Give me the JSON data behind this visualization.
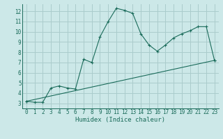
{
  "xlabel": "Humidex (Indice chaleur)",
  "bg_color": "#cce8e8",
  "grid_color": "#aacccc",
  "line_color": "#1a6b5a",
  "xlim": [
    -0.5,
    23.5
  ],
  "ylim": [
    2.5,
    12.7
  ],
  "xticks": [
    0,
    1,
    2,
    3,
    4,
    5,
    6,
    7,
    8,
    9,
    10,
    11,
    12,
    13,
    14,
    15,
    16,
    17,
    18,
    19,
    20,
    21,
    22,
    23
  ],
  "yticks": [
    3,
    4,
    5,
    6,
    7,
    8,
    9,
    10,
    11,
    12
  ],
  "curve1_x": [
    0,
    1,
    2,
    3,
    4,
    5,
    6,
    7,
    8,
    9,
    10,
    11,
    12,
    13,
    14,
    15,
    16,
    17,
    18,
    19,
    20,
    21,
    22,
    23
  ],
  "curve1_y": [
    3.2,
    3.1,
    3.1,
    4.5,
    4.7,
    4.5,
    4.4,
    7.3,
    7.0,
    9.5,
    11.0,
    12.3,
    12.1,
    11.8,
    9.8,
    8.7,
    8.1,
    8.7,
    9.4,
    9.8,
    10.1,
    10.5,
    10.5,
    7.2
  ],
  "curve2_x": [
    0,
    23
  ],
  "curve2_y": [
    3.2,
    7.2
  ],
  "tick_fontsize": 5.5,
  "xlabel_fontsize": 6.5
}
